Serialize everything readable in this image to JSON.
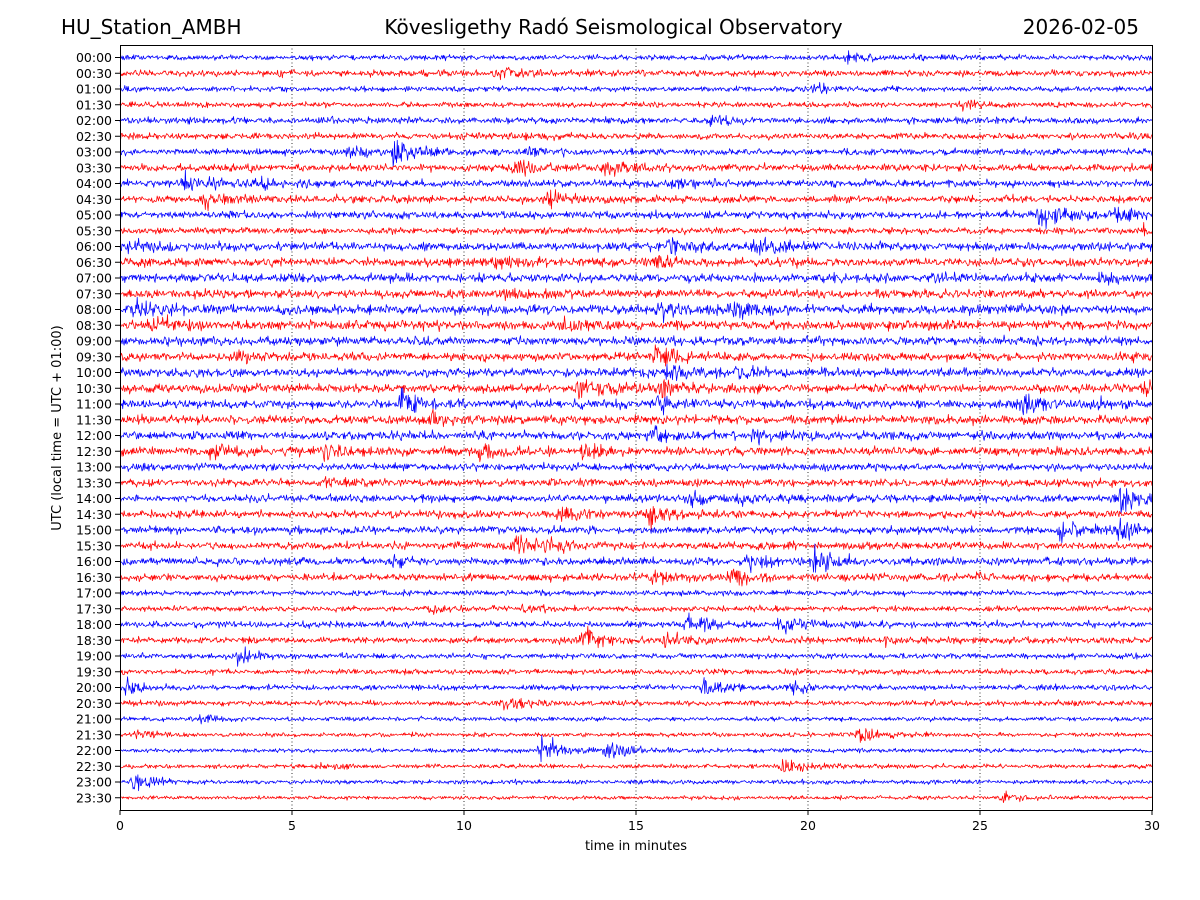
{
  "header": {
    "station": "HU_Station_AMBH",
    "observatory": "Kövesligethy Radó Seismological Observatory",
    "date": "2026-02-05"
  },
  "chart_data": {
    "type": "line",
    "title": "Kövesligethy Radó Seismological Observatory",
    "xlabel": "time in minutes",
    "ylabel": "UTC (local time = UTC + 01:00)",
    "xlim": [
      0,
      30
    ],
    "xticks": [
      0,
      5,
      10,
      15,
      20,
      25,
      30
    ],
    "grid": "vertical dotted",
    "series_colors": [
      "#0000ff",
      "#ff0000"
    ],
    "rows": [
      "00:00",
      "00:30",
      "01:00",
      "01:30",
      "02:00",
      "02:30",
      "03:00",
      "03:30",
      "04:00",
      "04:30",
      "05:00",
      "05:30",
      "06:00",
      "06:30",
      "07:00",
      "07:30",
      "08:00",
      "08:30",
      "09:00",
      "09:30",
      "10:00",
      "10:30",
      "11:00",
      "11:30",
      "12:00",
      "12:30",
      "13:00",
      "13:30",
      "14:00",
      "14:30",
      "15:00",
      "15:30",
      "16:00",
      "16:30",
      "17:00",
      "17:30",
      "18:00",
      "18:30",
      "19:00",
      "19:30",
      "20:00",
      "20:30",
      "21:00",
      "21:30",
      "22:00",
      "22:30",
      "23:00",
      "23:30"
    ],
    "row_noise": [
      2.5,
      3,
      2.5,
      2.5,
      3,
      3,
      3,
      3.5,
      3.5,
      3.5,
      3.5,
      3,
      4,
      4,
      4,
      4,
      4.5,
      4.5,
      4,
      4,
      4,
      4,
      4,
      4,
      4,
      4,
      3.5,
      3.5,
      3.5,
      3.5,
      3.5,
      3.5,
      3.5,
      3.5,
      2.5,
      2.5,
      3,
      3,
      2.5,
      2.5,
      2.5,
      2.5,
      2,
      2,
      2,
      2,
      2,
      1.8
    ],
    "events": [
      {
        "row": "00:00",
        "minute": 21.2,
        "amp": 9
      },
      {
        "row": "00:30",
        "minute": 11.0,
        "amp": 8
      },
      {
        "row": "00:30",
        "minute": 4.2,
        "amp": 5
      },
      {
        "row": "01:00",
        "minute": 20.2,
        "amp": 6
      },
      {
        "row": "01:30",
        "minute": 24.5,
        "amp": 6
      },
      {
        "row": "02:00",
        "minute": 17.2,
        "amp": 6
      },
      {
        "row": "02:30",
        "minute": 10.5,
        "amp": 5
      },
      {
        "row": "03:00",
        "minute": 8.0,
        "amp": 16
      },
      {
        "row": "03:00",
        "minute": 6.7,
        "amp": 8
      },
      {
        "row": "03:00",
        "minute": 12.0,
        "amp": 7
      },
      {
        "row": "03:30",
        "minute": 11.5,
        "amp": 10
      },
      {
        "row": "03:30",
        "minute": 14.0,
        "amp": 9
      },
      {
        "row": "04:00",
        "minute": 1.9,
        "amp": 11
      },
      {
        "row": "04:00",
        "minute": 3.8,
        "amp": 9
      },
      {
        "row": "04:00",
        "minute": 16.0,
        "amp": 8
      },
      {
        "row": "04:30",
        "minute": 2.5,
        "amp": 14
      },
      {
        "row": "04:30",
        "minute": 12.5,
        "amp": 10
      },
      {
        "row": "05:00",
        "minute": 26.8,
        "amp": 16
      },
      {
        "row": "05:00",
        "minute": 29.0,
        "amp": 10
      },
      {
        "row": "05:30",
        "minute": 29.8,
        "amp": 7
      },
      {
        "row": "06:00",
        "minute": 16.0,
        "amp": 11
      },
      {
        "row": "06:00",
        "minute": 18.5,
        "amp": 11
      },
      {
        "row": "06:00",
        "minute": 0.2,
        "amp": 8
      },
      {
        "row": "06:30",
        "minute": 10.9,
        "amp": 11
      },
      {
        "row": "06:30",
        "minute": 15.5,
        "amp": 9
      },
      {
        "row": "07:00",
        "minute": 23.5,
        "amp": 7
      },
      {
        "row": "07:00",
        "minute": 28.5,
        "amp": 7
      },
      {
        "row": "07:30",
        "minute": 11.0,
        "amp": 8
      },
      {
        "row": "08:00",
        "minute": 15.7,
        "amp": 13
      },
      {
        "row": "08:00",
        "minute": 17.8,
        "amp": 12
      },
      {
        "row": "08:00",
        "minute": 0.5,
        "amp": 11
      },
      {
        "row": "08:30",
        "minute": 0.9,
        "amp": 12
      },
      {
        "row": "08:30",
        "minute": 13.0,
        "amp": 8
      },
      {
        "row": "09:30",
        "minute": 15.6,
        "amp": 12
      },
      {
        "row": "09:30",
        "minute": 3.5,
        "amp": 8
      },
      {
        "row": "10:00",
        "minute": 16.0,
        "amp": 12
      },
      {
        "row": "10:00",
        "minute": 18.0,
        "amp": 12
      },
      {
        "row": "10:30",
        "minute": 13.4,
        "amp": 13
      },
      {
        "row": "10:30",
        "minute": 15.8,
        "amp": 11
      },
      {
        "row": "10:30",
        "minute": 29.8,
        "amp": 10
      },
      {
        "row": "11:00",
        "minute": 8.2,
        "amp": 13
      },
      {
        "row": "11:00",
        "minute": 26.3,
        "amp": 13
      },
      {
        "row": "11:00",
        "minute": 28.3,
        "amp": 10
      },
      {
        "row": "11:00",
        "minute": 15.6,
        "amp": 10
      },
      {
        "row": "11:30",
        "minute": 9.0,
        "amp": 9
      },
      {
        "row": "12:00",
        "minute": 15.5,
        "amp": 10
      },
      {
        "row": "12:00",
        "minute": 18.5,
        "amp": 9
      },
      {
        "row": "12:30",
        "minute": 2.7,
        "amp": 11
      },
      {
        "row": "12:30",
        "minute": 5.9,
        "amp": 11
      },
      {
        "row": "12:30",
        "minute": 10.5,
        "amp": 10
      },
      {
        "row": "12:30",
        "minute": 13.5,
        "amp": 9
      },
      {
        "row": "13:30",
        "minute": 5.8,
        "amp": 9
      },
      {
        "row": "14:00",
        "minute": 29.1,
        "amp": 15
      },
      {
        "row": "14:00",
        "minute": 16.6,
        "amp": 9
      },
      {
        "row": "14:00",
        "minute": 18.0,
        "amp": 8
      },
      {
        "row": "14:30",
        "minute": 12.8,
        "amp": 12
      },
      {
        "row": "14:30",
        "minute": 15.4,
        "amp": 13
      },
      {
        "row": "15:00",
        "minute": 27.4,
        "amp": 12
      },
      {
        "row": "15:00",
        "minute": 29.0,
        "amp": 12
      },
      {
        "row": "15:30",
        "minute": 11.5,
        "amp": 12
      },
      {
        "row": "15:30",
        "minute": 12.4,
        "amp": 9
      },
      {
        "row": "16:00",
        "minute": 18.3,
        "amp": 11
      },
      {
        "row": "16:00",
        "minute": 20.2,
        "amp": 13
      },
      {
        "row": "16:00",
        "minute": 7.9,
        "amp": 9
      },
      {
        "row": "16:30",
        "minute": 15.5,
        "amp": 10
      },
      {
        "row": "16:30",
        "minute": 17.8,
        "amp": 10
      },
      {
        "row": "17:30",
        "minute": 9.0,
        "amp": 6
      },
      {
        "row": "17:30",
        "minute": 11.8,
        "amp": 6
      },
      {
        "row": "18:00",
        "minute": 16.5,
        "amp": 11
      },
      {
        "row": "18:00",
        "minute": 19.2,
        "amp": 10
      },
      {
        "row": "18:30",
        "minute": 13.5,
        "amp": 12
      },
      {
        "row": "18:30",
        "minute": 15.9,
        "amp": 10
      },
      {
        "row": "18:30",
        "minute": 22.2,
        "amp": 6
      },
      {
        "row": "19:00",
        "minute": 3.4,
        "amp": 10
      },
      {
        "row": "19:30",
        "minute": 19.3,
        "amp": 5
      },
      {
        "row": "20:00",
        "minute": 0.2,
        "amp": 10
      },
      {
        "row": "20:00",
        "minute": 17.0,
        "amp": 9
      },
      {
        "row": "20:00",
        "minute": 19.5,
        "amp": 8
      },
      {
        "row": "20:30",
        "minute": 11.2,
        "amp": 8
      },
      {
        "row": "21:00",
        "minute": 2.4,
        "amp": 5
      },
      {
        "row": "21:30",
        "minute": 21.5,
        "amp": 11
      },
      {
        "row": "21:30",
        "minute": 0.5,
        "amp": 6
      },
      {
        "row": "22:00",
        "minute": 12.3,
        "amp": 18
      },
      {
        "row": "22:00",
        "minute": 14.2,
        "amp": 10
      },
      {
        "row": "22:30",
        "minute": 19.3,
        "amp": 11
      },
      {
        "row": "22:30",
        "minute": 5.8,
        "amp": 5
      },
      {
        "row": "23:00",
        "minute": 0.4,
        "amp": 10
      },
      {
        "row": "23:30",
        "minute": 25.7,
        "amp": 6
      }
    ]
  }
}
